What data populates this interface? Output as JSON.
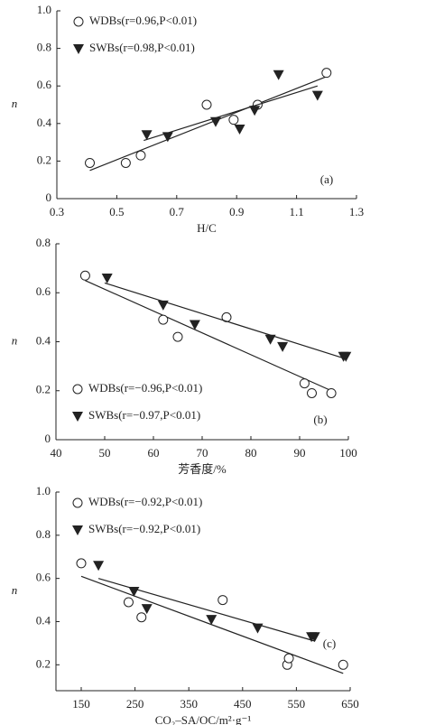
{
  "chart_data": [
    {
      "type": "scatter",
      "panel_label": "(a)",
      "xlabel": "H/C",
      "ylabel": "n",
      "legend": "upper left",
      "xlim": [
        0.3,
        1.3
      ],
      "ylim": [
        0,
        1
      ],
      "xticks": [
        0.3,
        0.5,
        0.7,
        0.9,
        1.1,
        1.3
      ],
      "yticks": [
        0,
        0.2,
        0.4,
        0.6,
        0.8,
        {
          "value": 1,
          "label": "1.0"
        }
      ],
      "series": [
        {
          "name": "WDBs(r=0.96,P<0.01)",
          "marker": "circle",
          "color": "#222",
          "x": [
            0.41,
            0.53,
            0.58,
            0.8,
            0.89,
            0.97,
            1.2
          ],
          "values": [
            0.19,
            0.19,
            0.23,
            0.5,
            0.42,
            0.5,
            0.67
          ],
          "fit": {
            "x": [
              0.41,
              1.2
            ],
            "values": [
              0.15,
              0.65
            ]
          }
        },
        {
          "name": "SWBs(r=0.98,P<0.01)",
          "marker": "triangle",
          "color": "#222",
          "x": [
            0.6,
            0.67,
            0.83,
            0.91,
            0.96,
            1.04,
            1.17
          ],
          "values": [
            0.34,
            0.33,
            0.41,
            0.37,
            0.47,
            0.66,
            0.55
          ],
          "fit": {
            "x": [
              0.59,
              1.17
            ],
            "values": [
              0.31,
              0.6
            ]
          }
        }
      ]
    },
    {
      "type": "scatter",
      "panel_label": "(b)",
      "xlabel": "芳香度/%",
      "ylabel": "n",
      "legend": "lower left",
      "xlim": [
        40,
        100
      ],
      "ylim": [
        0,
        0.8
      ],
      "xticks": [
        40,
        50,
        60,
        70,
        80,
        90,
        100
      ],
      "yticks": [
        0,
        0.2,
        0.4,
        0.6,
        0.8
      ],
      "series": [
        {
          "name": "WDBs(r=−0.96,P<0.01)",
          "marker": "circle",
          "color": "#222",
          "x": [
            46,
            62,
            65,
            75,
            91,
            92.5,
            96.5
          ],
          "values": [
            0.67,
            0.49,
            0.42,
            0.5,
            0.23,
            0.19,
            0.19
          ],
          "fit": {
            "x": [
              46,
              96.5
            ],
            "values": [
              0.65,
              0.2
            ]
          }
        },
        {
          "name": "SWBs(r=−0.97,P<0.01)",
          "marker": "triangle",
          "color": "#222",
          "x": [
            50.5,
            62,
            68.5,
            84,
            86.5,
            99,
            99.5
          ],
          "values": [
            0.66,
            0.55,
            0.47,
            0.41,
            0.38,
            0.34,
            0.34
          ],
          "fit": {
            "x": [
              50,
              99.5
            ],
            "values": [
              0.64,
              0.33
            ]
          }
        }
      ]
    },
    {
      "type": "scatter",
      "panel_label": "(c)",
      "xlabel": "CO₂–SA/OC/m²·g⁻¹",
      "ylabel": "n",
      "legend": "upper left",
      "xlim": [
        103,
        650
      ],
      "ylim": [
        0.08,
        1
      ],
      "xticks": [
        150,
        250,
        350,
        450,
        550,
        650
      ],
      "yticks": [
        0.2,
        0.4,
        0.6,
        0.8,
        {
          "value": 1,
          "label": "1.0"
        }
      ],
      "series": [
        {
          "name": "WDBs(r=−0.92,P<0.01)",
          "marker": "circle",
          "color": "#222",
          "x": [
            150,
            238,
            262,
            413,
            533,
            536,
            637
          ],
          "values": [
            0.67,
            0.49,
            0.42,
            0.5,
            0.2,
            0.23,
            0.2
          ],
          "fit": {
            "x": [
              150,
              637
            ],
            "values": [
              0.61,
              0.16
            ]
          }
        },
        {
          "name": "SWBs(r=−0.92,P<0.01)",
          "marker": "triangle",
          "color": "#222",
          "x": [
            182,
            248,
            272,
            392,
            478,
            578,
            584
          ],
          "values": [
            0.66,
            0.54,
            0.46,
            0.41,
            0.37,
            0.33,
            0.33
          ],
          "fit": {
            "x": [
              182,
              584
            ],
            "values": [
              0.6,
              0.31
            ]
          }
        }
      ]
    }
  ]
}
